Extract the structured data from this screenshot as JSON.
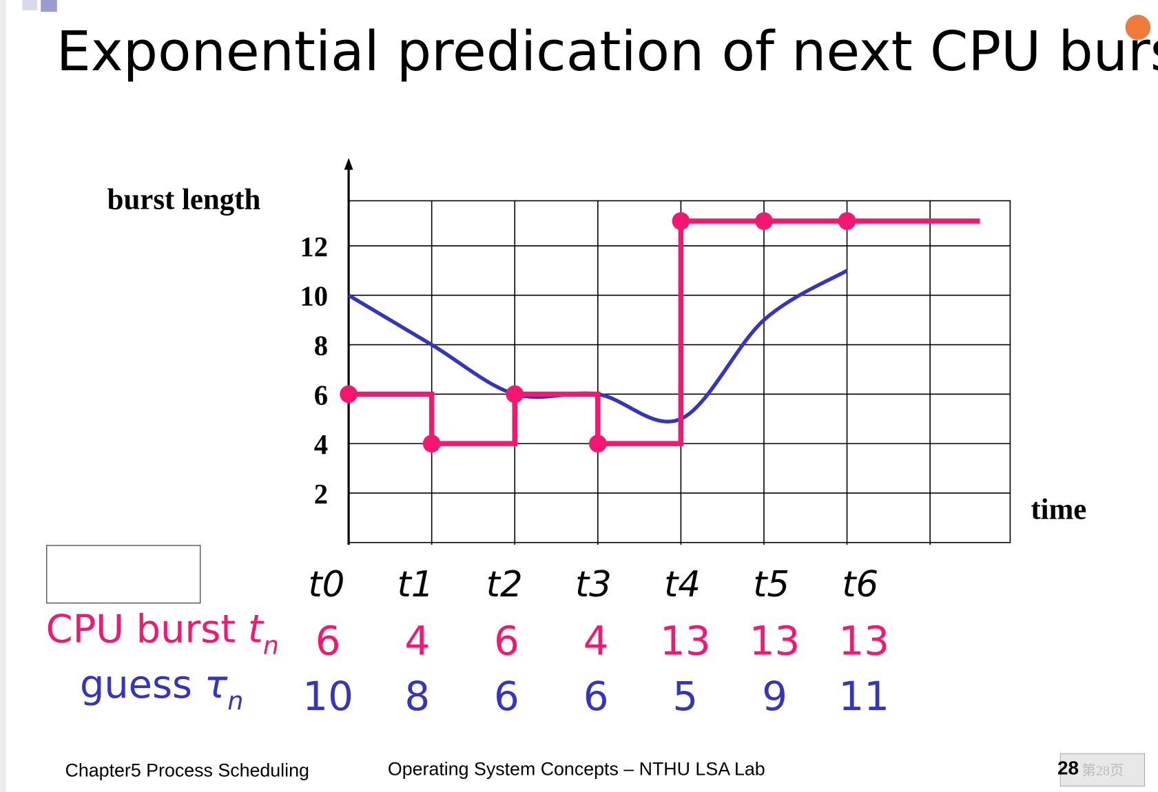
{
  "title": "Exponential predication of next CPU burst",
  "chart_data": {
    "type": "step-line",
    "y_label": "burst length",
    "x_label": "time",
    "categories": [
      "t0",
      "t1",
      "t2",
      "t3",
      "t4",
      "t5",
      "t6"
    ],
    "ylim": [
      0,
      14
    ],
    "yticks": [
      2,
      4,
      6,
      8,
      10,
      12
    ],
    "grid": true,
    "series": [
      {
        "name": "CPU burst",
        "symbol": "t",
        "subscript": "n",
        "color": "#f5176f",
        "style": "step",
        "values": [
          6,
          4,
          6,
          4,
          13,
          13,
          13
        ]
      },
      {
        "name": "guess",
        "symbol": "τ",
        "subscript": "n",
        "color": "#3333c4",
        "style": "smooth",
        "values": [
          10,
          8,
          6,
          6,
          5,
          9,
          11
        ]
      }
    ]
  },
  "footer": {
    "chapter": "Chapter5 Process Scheduling",
    "course": "Operating System Concepts – NTHU LSA Lab",
    "page": "28",
    "page_cn": "第28页"
  }
}
